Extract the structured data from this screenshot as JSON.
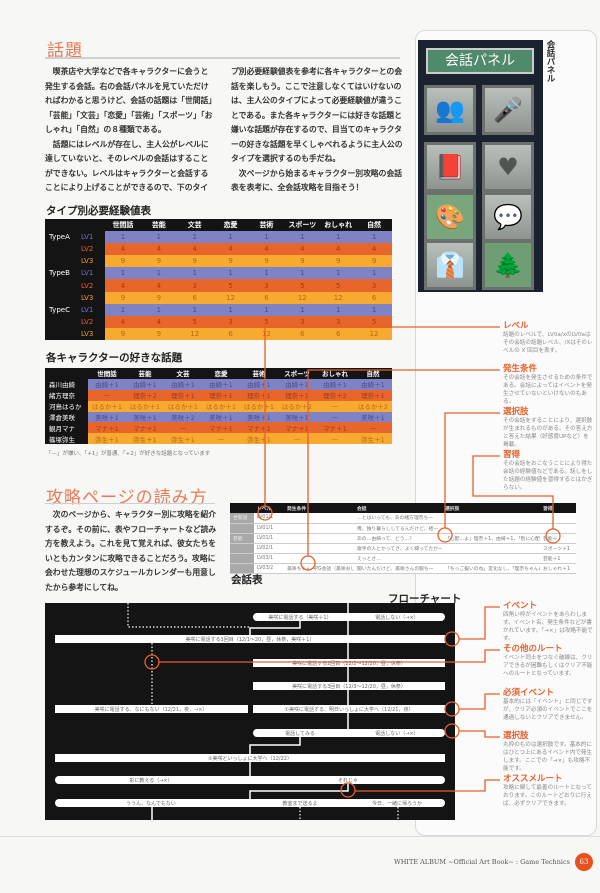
{
  "section1": {
    "title": "話題",
    "body_col1": [
      "喫茶店や大学などで各キャラクターに会うと発生する会話。右の会話パネルを見ていただければわかると思うけど、会話の話題は「世間話」「芸能」「文芸」「恋愛」「芸術」「スポーツ」「おしゃれ」「自然」の８種類である。",
      "話題にはレベルが存在し、主人公がレベルに達していないと、そのレベルの会話はすることができない。レベルはキャラクターと会話することにより上げることができるので、下のタイ"
    ],
    "body_col2": [
      "プ別必要経験値表を参考に各キャラクターとの会話を楽しもう。ここで注意しなくてはいけないのは、主人公のタイプによって必要経験値が違うことである。また各キャラクターには好きな話題と嫌いな話題が存在するので、目当てのキャラクターの好きな話題を早くしゃべれるように主人公のタイプを選択するのも手だね。",
      "次ページから始まるキャラクター別攻略の会話表を表考に、全会話攻略を目指そう！"
    ]
  },
  "exp_table": {
    "title": "タイプ別必要経験値表",
    "columns": [
      "世間話",
      "芸能",
      "文芸",
      "恋愛",
      "芸術",
      "スポーツ",
      "おしゃれ",
      "自然"
    ],
    "rows": [
      {
        "type": "TypeA",
        "level": "LV1",
        "values": [
          "1",
          "1",
          "1",
          "1",
          "1",
          "1",
          "1",
          "1"
        ]
      },
      {
        "type": "",
        "level": "LV2",
        "values": [
          "4",
          "4",
          "4",
          "4",
          "4",
          "4",
          "4",
          "4"
        ]
      },
      {
        "type": "",
        "level": "LV3",
        "values": [
          "9",
          "9",
          "9",
          "9",
          "9",
          "9",
          "9",
          "9"
        ]
      },
      {
        "type": "TypeB",
        "level": "LV1",
        "values": [
          "1",
          "1",
          "1",
          "1",
          "1",
          "1",
          "1",
          "1"
        ]
      },
      {
        "type": "",
        "level": "LV2",
        "values": [
          "4",
          "4",
          "3",
          "5",
          "3",
          "5",
          "5",
          "3"
        ]
      },
      {
        "type": "",
        "level": "LV3",
        "values": [
          "9",
          "9",
          "6",
          "12",
          "6",
          "12",
          "12",
          "6"
        ]
      },
      {
        "type": "TypeC",
        "level": "LV1",
        "values": [
          "1",
          "1",
          "1",
          "1",
          "1",
          "1",
          "1",
          "1"
        ]
      },
      {
        "type": "",
        "level": "LV2",
        "values": [
          "4",
          "4",
          "5",
          "3",
          "5",
          "3",
          "3",
          "5"
        ]
      },
      {
        "type": "",
        "level": "LV3",
        "values": [
          "9",
          "9",
          "12",
          "6",
          "12",
          "6",
          "6",
          "12"
        ]
      }
    ]
  },
  "fav_table": {
    "title": "各キャラクターの好きな話題",
    "columns": [
      "世間話",
      "芸能",
      "文芸",
      "恋愛",
      "芸術",
      "スポーツ",
      "おしゃれ",
      "自然"
    ],
    "rows": [
      {
        "name": "森川由綺",
        "values": [
          "由綺＋1",
          "由綺＋1",
          "由綺＋1",
          "由綺＋1",
          "由綺＋1",
          "由綺＋1",
          "由綺＋1",
          "由綺＋1"
        ]
      },
      {
        "name": "緒方理奈",
        "values": [
          "—",
          "理奈＋2",
          "理奈＋1",
          "理奈＋1",
          "理奈＋1",
          "理奈＋1",
          "理奈＋2",
          "理奈＋1"
        ]
      },
      {
        "name": "河島はるか",
        "values": [
          "はるか＋1",
          "はるか＋1",
          "はるか＋1",
          "はるか＋1",
          "はるか＋1",
          "はるか＋2",
          "—",
          "はるか＋2"
        ]
      },
      {
        "name": "澤倉美咲",
        "values": [
          "美咲＋1",
          "美咲＋1",
          "美咲＋2",
          "美咲＋1",
          "美咲＋1",
          "美咲＋1",
          "—",
          "美咲＋1"
        ]
      },
      {
        "name": "観月マナ",
        "values": [
          "マナ＋1",
          "マナ＋1",
          "—",
          "マナ＋1",
          "マナ＋1",
          "マナ＋1",
          "マナ＋1",
          "—"
        ]
      },
      {
        "name": "篠塚弥生",
        "values": [
          "弥生＋1",
          "弥生＋1",
          "弥生＋1",
          "—",
          "弥生＋1",
          "—",
          "—",
          "弥生＋1"
        ]
      }
    ],
    "note": "「—」が嫌い、「+1」が普通、「+2」が好きな話題となっています"
  },
  "section2": {
    "title": "攻略ページの読み方",
    "body": "次のページから、キャラクター別に攻略を紹介するぞ。その前に、表やフローチャートなど読み方を教えよう。これを見て覚えれば、彼女たちをいともカンタンに攻略できることだろう。攻略に会わせた理想のスケジュールカレンダーも用意したから参考にしてね。"
  },
  "panel": {
    "title": "会話パネル",
    "caption": "会話パネル",
    "icons": [
      "people-icon",
      "microphone-icon",
      "book-icon",
      "heart-icon",
      "easel-icon",
      "conversation-icon",
      "jacket-icon",
      "forest-icon"
    ]
  },
  "conv_table": {
    "caption": "会話表",
    "columns": [
      "",
      "レベル",
      "発生条件",
      "会話",
      "選択肢",
      "習得"
    ],
    "rows": [
      {
        "cat": "世間話",
        "level": "LV01/1",
        "cond": "",
        "talk": "…とはいっても、あの緒方理奈ちー",
        "choice": "",
        "gain": ""
      },
      {
        "cat": "",
        "level": "LV01/1",
        "cond": "",
        "talk": "俺、独り暮らししてるんだけど、結ー",
        "choice": "",
        "gain": ""
      },
      {
        "cat": "芸能",
        "level": "LV01/1",
        "cond": "",
        "talk": "あの…由綺って、どう…？",
        "choice": "「心配…よ」理奈＋1、由綺＋1、「別に心配とかじゃない…」理奈A＋1 B＋2 C＋0",
        "gain": "芸能＋"
      },
      {
        "cat": "",
        "level": "LV02/1",
        "cond": "",
        "talk": "歌手の人とかってさ、よく縁ってたかー",
        "choice": "",
        "gain": "スポーツ＋1"
      },
      {
        "cat": "",
        "level": "LV03/1",
        "cond": "",
        "talk": "えっとさ…",
        "choice": "",
        "gain": "芸能＋1"
      },
      {
        "cat": "",
        "level": "LV03/2",
        "cond": "美咲ちゃん→PG会話（美咲おしゃれLV01/1）通過",
        "talk": "聞いたんだけど、美咲さんの服ちー",
        "choice": "「ちっこ擬いのね」変化なし、「理奈ちゃんに選んでもらえるんだったら…」理奈＋1",
        "gain": "おしゃれ＋1"
      }
    ]
  },
  "annotations_top": [
    {
      "title": "レベル",
      "text": "話題のレベルで、LV0a/xのLV0aはその会話の話題レベル、/Xはそのレベルの X 回目を表す。"
    },
    {
      "title": "発生条件",
      "text": "その会話を発生させるための条件である。会話によってはイベントを発生させていないといけないのもある。"
    },
    {
      "title": "選択肢",
      "text": "その会話をすることにより、選択肢が生まれるものがある。その答え方と答えた結果（好感度UPなど）を掲載。"
    },
    {
      "title": "習得",
      "text": "その会話をおこなうことにより得た会話の経験値などである。話しをした話題の経験値を習得するとはかぎらない。"
    }
  ],
  "flowchart": {
    "title": "フローチャート",
    "nodes": {
      "n1a": "美咲に電話する（美咲＋1）",
      "n1b": "電話しない（→×）",
      "n2": "美咲に電話する1回目（12/1〜20，昼，休祭，美咲＋1）",
      "n3": "美咲に電話する2回目（12/2〜12/20，昼，休祭）",
      "n4": "美咲に電話する3回目（12/3〜12/20，昼，休祭）",
      "n5a": "美咲に電話する、なにもない（12/21，夜，→×）",
      "n5b": "①美咲に電話する、明日いっしょに大学へ（12/21，夜）",
      "n6a": "電話してみる",
      "n6b": "電話しない（→×）",
      "n7": "②美咲といっしょに大学へ（12/22）",
      "n8a": "彰に教える（→×）",
      "n8b": "それじゃ",
      "n9a": "ううん、なんでもない",
      "n9b": "教室まで送るよ",
      "n9c": "今日、一緒に帰ろうか"
    }
  },
  "annotations_bottom": [
    {
      "title": "イベント",
      "text": "四角い枠がイベントをあらわします。イベント名、発生条件などが書かれています。「→×」は攻略不能です。"
    },
    {
      "title": "その他のルート",
      "text": "イベント同士をつなぐ破線は、クリアできるが困難もしくはクリア不能へのルートとなっています。"
    },
    {
      "title": "必須イベント",
      "text": "基本的には「イベント」と同じですが、クリア必須のイベントでここを通過しないとクリアできません。"
    },
    {
      "title": "選択肢",
      "text": "丸枠のものは選択肢です。基本的にはひとつ上にあるイベント内で発生します。ここでの「→×」も攻略不能です。"
    },
    {
      "title": "オススメルート",
      "text": "攻略に関して最善のルートとなっております。このルートどおりに行えば、必ずクリアできます。"
    }
  ],
  "footer": {
    "text": "WHITE ALBUM ~Official Art Book~ : Game Technics",
    "page": "63"
  },
  "colors": {
    "accent": "#e8602a",
    "row_blue": "#7f82c4",
    "row_orange": "#e8662c",
    "row_light_orange": "#f7a930",
    "header": "#141414"
  }
}
